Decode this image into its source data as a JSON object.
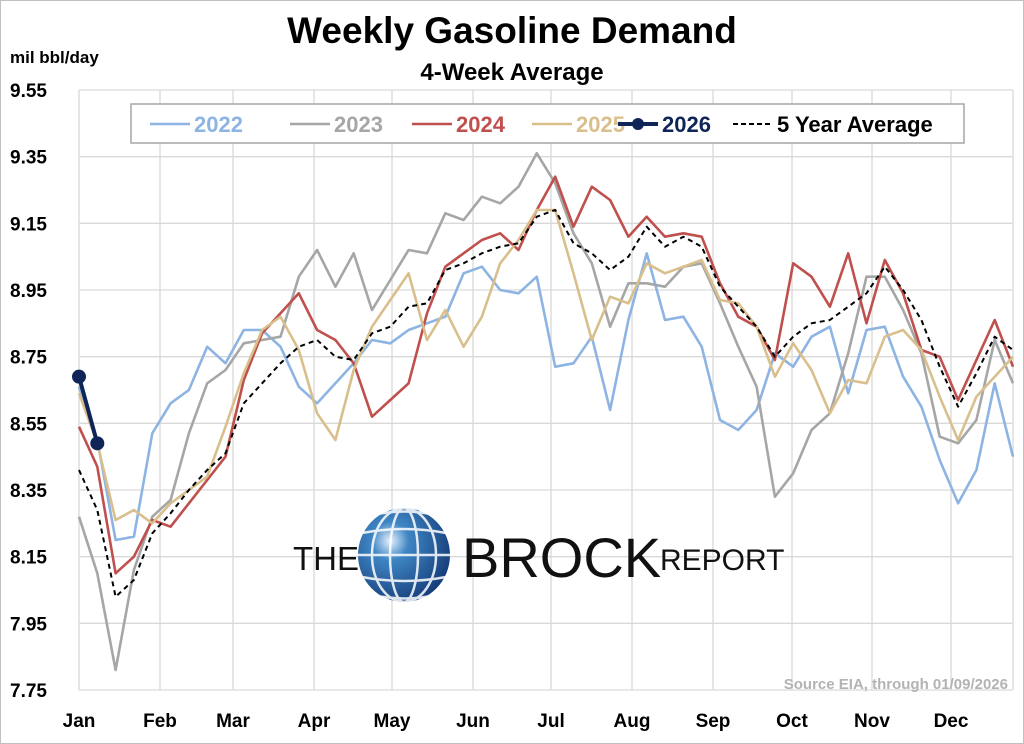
{
  "chart_data": {
    "type": "line",
    "title": "Weekly Gasoline Demand",
    "subtitle": "4-Week Average",
    "ylabel": "mil bbl/day",
    "xlabel": "",
    "ylim": [
      7.75,
      9.55
    ],
    "yticks": [
      "9.55",
      "9.35",
      "9.15",
      "8.95",
      "8.75",
      "8.55",
      "8.35",
      "8.15",
      "7.95",
      "7.75"
    ],
    "ytick_values": [
      9.55,
      9.35,
      9.15,
      8.95,
      8.75,
      8.55,
      8.35,
      8.15,
      7.95,
      7.75
    ],
    "months": [
      "Jan",
      "Feb",
      "Mar",
      "Apr",
      "May",
      "Jun",
      "Jul",
      "Aug",
      "Sep",
      "Oct",
      "Nov",
      "Dec"
    ],
    "weeks": 52,
    "grid": true,
    "legend_position": "top",
    "source_note": "Source EIA, through 01/09/2026",
    "series": [
      {
        "name": "2022",
        "color": "#8db4e2",
        "dashed": false,
        "markers": false,
        "values": [
          8.66,
          8.5,
          8.2,
          8.21,
          8.52,
          8.61,
          8.65,
          8.78,
          8.73,
          8.83,
          8.83,
          8.78,
          8.66,
          8.61,
          8.67,
          8.73,
          8.8,
          8.79,
          8.83,
          8.85,
          8.87,
          9.0,
          9.02,
          8.95,
          8.94,
          8.99,
          8.72,
          8.73,
          8.81,
          8.59,
          8.86,
          9.06,
          8.86,
          8.87,
          8.78,
          8.56,
          8.53,
          8.59,
          8.76,
          8.72,
          8.81,
          8.84,
          8.64,
          8.83,
          8.84,
          8.69,
          8.6,
          8.44,
          8.31,
          8.41,
          8.67,
          8.45
        ]
      },
      {
        "name": "2023",
        "color": "#a6a6a6",
        "dashed": false,
        "markers": false,
        "values": [
          8.27,
          8.1,
          7.81,
          8.11,
          8.27,
          8.32,
          8.52,
          8.67,
          8.71,
          8.79,
          8.8,
          8.81,
          8.99,
          9.07,
          8.96,
          9.06,
          8.89,
          8.98,
          9.07,
          9.06,
          9.18,
          9.16,
          9.23,
          9.21,
          9.26,
          9.36,
          9.27,
          9.12,
          9.03,
          8.84,
          8.97,
          8.97,
          8.96,
          9.02,
          9.03,
          8.91,
          8.78,
          8.66,
          8.33,
          8.4,
          8.53,
          8.58,
          8.76,
          8.99,
          8.99,
          8.89,
          8.76,
          8.51,
          8.49,
          8.56,
          8.8,
          8.67
        ]
      },
      {
        "name": "2024",
        "color": "#c0504d",
        "dashed": false,
        "markers": false,
        "values": [
          8.54,
          8.42,
          8.1,
          8.15,
          8.26,
          8.24,
          8.31,
          8.38,
          8.45,
          8.68,
          8.82,
          8.88,
          8.94,
          8.83,
          8.8,
          8.73,
          8.57,
          8.62,
          8.67,
          8.88,
          9.02,
          9.06,
          9.1,
          9.12,
          9.07,
          9.19,
          9.29,
          9.14,
          9.26,
          9.22,
          9.11,
          9.17,
          9.11,
          9.12,
          9.11,
          8.97,
          8.87,
          8.84,
          8.74,
          9.03,
          8.99,
          8.9,
          9.06,
          8.85,
          9.04,
          8.94,
          8.77,
          8.75,
          8.62,
          8.74,
          8.86,
          8.72
        ]
      },
      {
        "name": "2025",
        "color": "#d9bf8c",
        "dashed": false,
        "markers": false,
        "values": [
          8.64,
          8.49,
          8.26,
          8.29,
          8.25,
          8.31,
          8.35,
          8.39,
          8.54,
          8.7,
          8.83,
          8.87,
          8.77,
          8.58,
          8.5,
          8.71,
          8.84,
          8.92,
          9.0,
          8.8,
          8.89,
          8.78,
          8.87,
          9.03,
          9.1,
          9.19,
          9.19,
          9.0,
          8.8,
          8.93,
          8.91,
          9.03,
          9.0,
          9.02,
          9.04,
          8.92,
          8.91,
          8.84,
          8.69,
          8.79,
          8.71,
          8.58,
          8.68,
          8.67,
          8.81,
          8.83,
          8.77,
          8.63,
          8.5,
          8.63,
          8.69,
          8.75
        ]
      },
      {
        "name": "2026",
        "color": "#0f2557",
        "dashed": false,
        "markers": true,
        "values": [
          8.69,
          8.49
        ]
      },
      {
        "name": "5 Year Average",
        "color": "#000000",
        "dashed": true,
        "markers": false,
        "values": [
          8.41,
          8.29,
          8.03,
          8.08,
          8.22,
          8.28,
          8.35,
          8.41,
          8.46,
          8.61,
          8.67,
          8.73,
          8.78,
          8.8,
          8.75,
          8.74,
          8.82,
          8.84,
          8.9,
          8.91,
          9.01,
          9.03,
          9.06,
          9.08,
          9.09,
          9.17,
          9.19,
          9.09,
          9.06,
          9.01,
          9.05,
          9.14,
          9.08,
          9.11,
          9.08,
          8.96,
          8.9,
          8.84,
          8.75,
          8.81,
          8.85,
          8.86,
          8.9,
          8.94,
          9.02,
          8.95,
          8.86,
          8.72,
          8.6,
          8.7,
          8.81,
          8.77
        ]
      }
    ]
  },
  "logo": {
    "the": "THE",
    "brock": "BROCK",
    "report": "REPORT"
  }
}
